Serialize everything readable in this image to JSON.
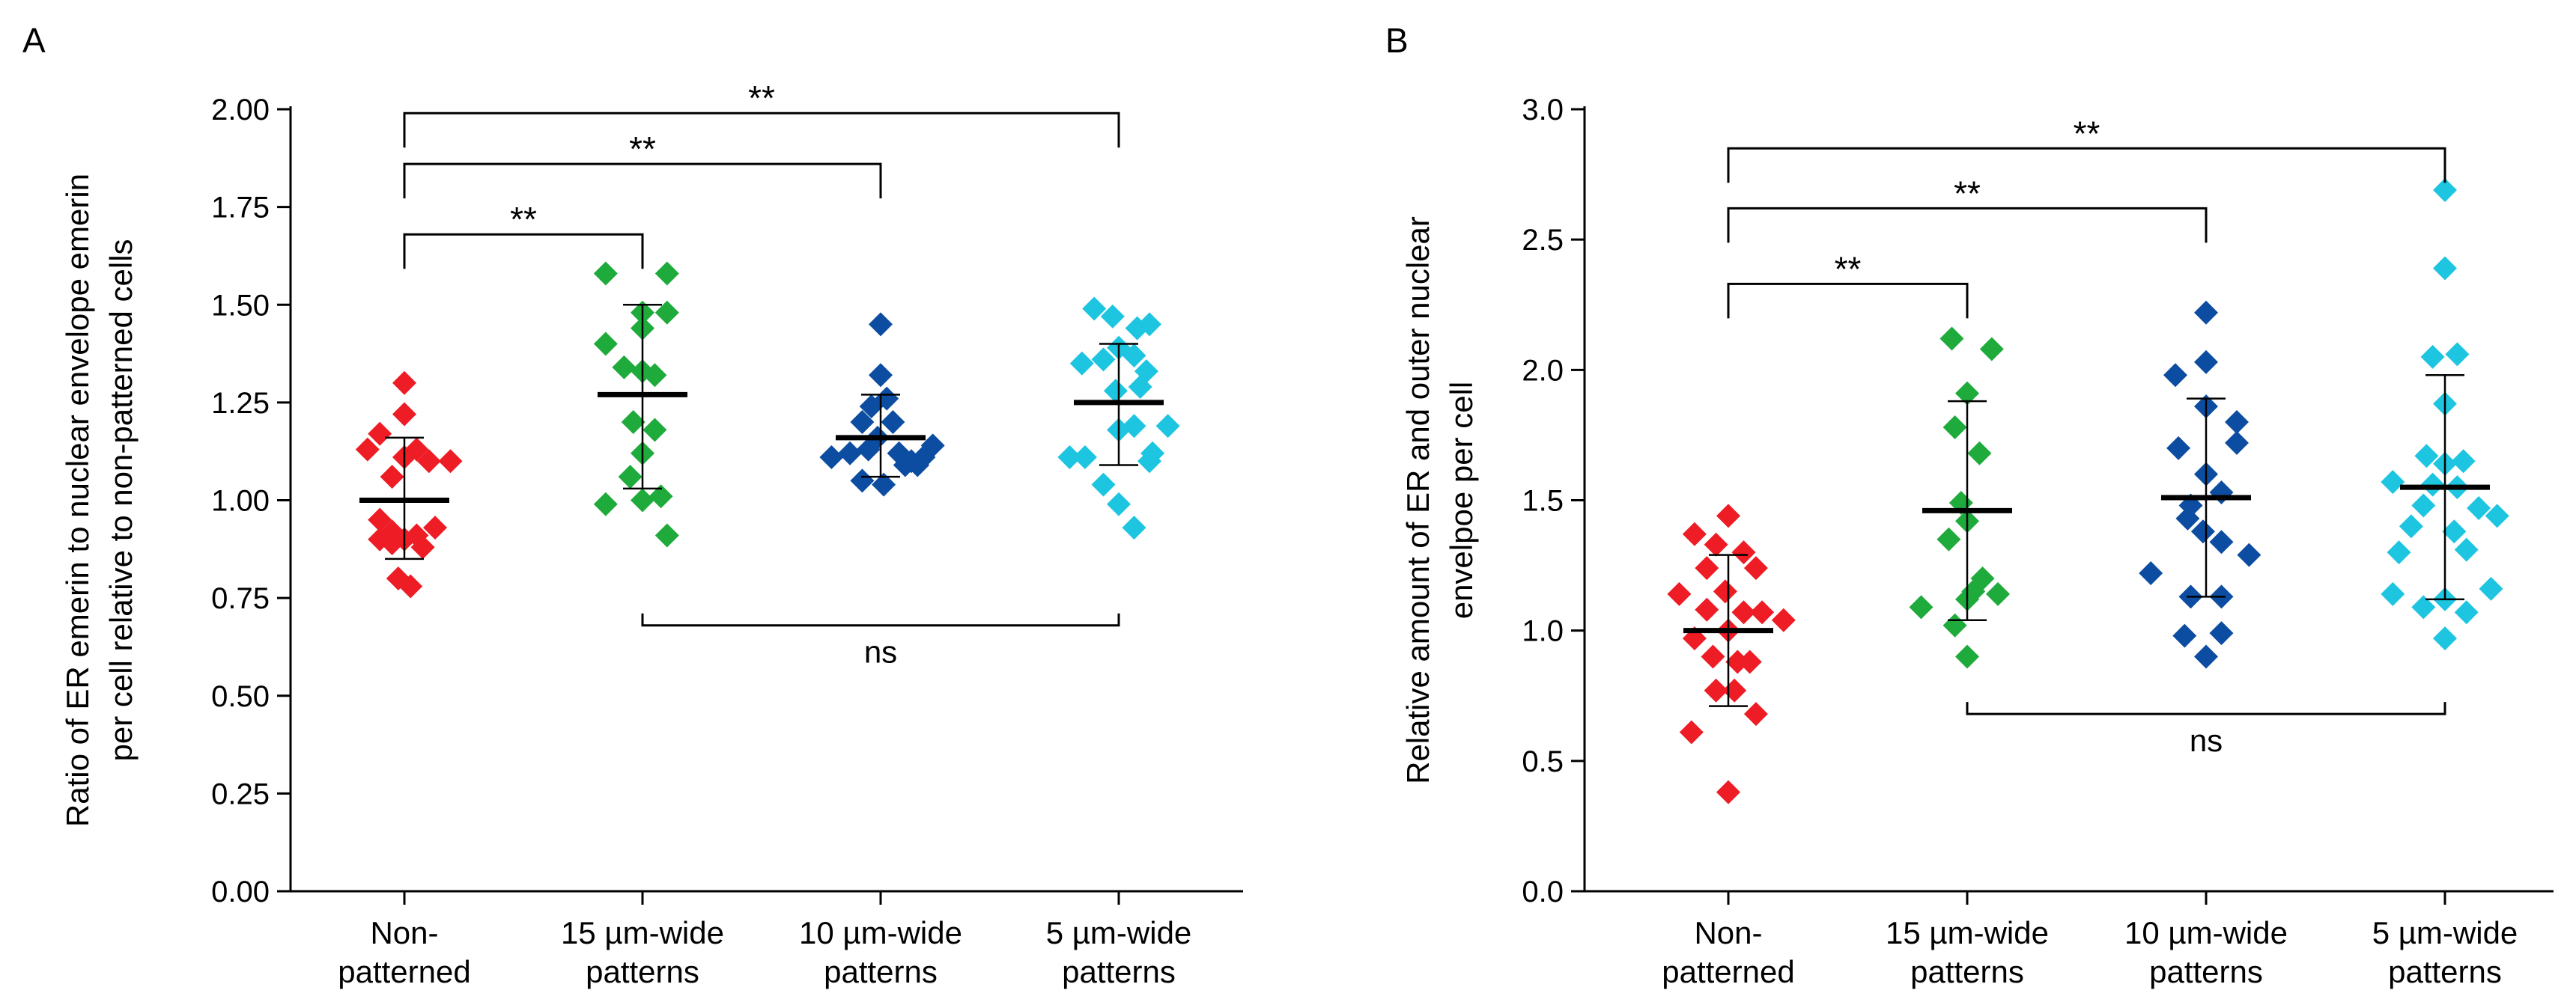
{
  "colors": {
    "non_patterned": "#ee1c25",
    "w15": "#1faa3c",
    "w10": "#0d4da1",
    "w5": "#1ec5e0",
    "line": "#000000"
  },
  "chart_data": [
    {
      "type": "scatter",
      "panel_label": "A",
      "ylabel_lines": [
        "Ratio of ER emerin to nuclear envelope emerin",
        "per cell relative to non-patterned cells"
      ],
      "categories": [
        [
          "Non-",
          "patterned"
        ],
        [
          "15 µm-wide",
          "patterns"
        ],
        [
          "10 µm-wide",
          "patterns"
        ],
        [
          "5 µm-wide",
          "patterns"
        ]
      ],
      "ylim": [
        0,
        2.0
      ],
      "yticks": [
        "0.00",
        "0.25",
        "0.50",
        "0.75",
        "1.00",
        "1.25",
        "1.50",
        "1.75",
        "2.00"
      ],
      "ytick_values": [
        0,
        0.25,
        0.5,
        0.75,
        1.0,
        1.25,
        1.5,
        1.75,
        2.0
      ],
      "series": [
        {
          "name": "Non-patterned",
          "color_key": "non_patterned",
          "mean": 1.0,
          "sd": [
            0.85,
            1.16
          ],
          "points": [
            [
              -0.6,
              1.13
            ],
            [
              -0.4,
              1.17
            ],
            [
              0.0,
              1.3
            ],
            [
              0.0,
              1.22
            ],
            [
              0.0,
              1.11
            ],
            [
              0.2,
              1.13
            ],
            [
              0.4,
              1.1
            ],
            [
              0.75,
              1.1
            ],
            [
              -0.2,
              1.06
            ],
            [
              -0.4,
              0.95
            ],
            [
              -0.2,
              0.92
            ],
            [
              0.0,
              0.9
            ],
            [
              -0.4,
              0.9
            ],
            [
              -0.2,
              0.89
            ],
            [
              0.2,
              0.91
            ],
            [
              0.5,
              0.93
            ],
            [
              0.3,
              0.88
            ],
            [
              -0.1,
              0.8
            ],
            [
              0.1,
              0.78
            ]
          ]
        },
        {
          "name": "15 µm-wide patterns",
          "color_key": "w15",
          "mean": 1.27,
          "sd": [
            1.03,
            1.5
          ],
          "points": [
            [
              -0.6,
              1.58
            ],
            [
              0.4,
              1.58
            ],
            [
              0.0,
              1.48
            ],
            [
              0.4,
              1.48
            ],
            [
              -0.6,
              1.4
            ],
            [
              -0.3,
              1.34
            ],
            [
              0.2,
              1.32
            ],
            [
              0.0,
              1.44
            ],
            [
              0.0,
              1.33
            ],
            [
              -0.15,
              1.2
            ],
            [
              0.2,
              1.18
            ],
            [
              0.0,
              1.12
            ],
            [
              -0.2,
              1.06
            ],
            [
              -0.6,
              0.99
            ],
            [
              0.0,
              1.0
            ],
            [
              0.3,
              1.01
            ],
            [
              0.4,
              0.91
            ]
          ]
        },
        {
          "name": "10 µm-wide patterns",
          "color_key": "w10",
          "mean": 1.16,
          "sd": [
            1.06,
            1.27
          ],
          "points": [
            [
              0.0,
              1.45
            ],
            [
              0.0,
              1.32
            ],
            [
              -0.15,
              1.24
            ],
            [
              0.1,
              1.26
            ],
            [
              -0.3,
              1.2
            ],
            [
              0.2,
              1.2
            ],
            [
              -0.8,
              1.11
            ],
            [
              -0.5,
              1.12
            ],
            [
              -0.2,
              1.13
            ],
            [
              -0.05,
              1.16
            ],
            [
              0.3,
              1.12
            ],
            [
              0.5,
              1.1
            ],
            [
              0.7,
              1.11
            ],
            [
              0.85,
              1.14
            ],
            [
              -0.3,
              1.05
            ],
            [
              0.05,
              1.04
            ],
            [
              0.4,
              1.09
            ],
            [
              0.6,
              1.09
            ]
          ]
        },
        {
          "name": "5 µm-wide patterns",
          "color_key": "w5",
          "mean": 1.25,
          "sd": [
            1.09,
            1.4
          ],
          "points": [
            [
              -0.4,
              1.49
            ],
            [
              -0.1,
              1.47
            ],
            [
              0.3,
              1.44
            ],
            [
              0.5,
              1.45
            ],
            [
              -0.6,
              1.35
            ],
            [
              -0.25,
              1.36
            ],
            [
              0.0,
              1.39
            ],
            [
              0.25,
              1.37
            ],
            [
              0.45,
              1.33
            ],
            [
              -0.05,
              1.28
            ],
            [
              0.35,
              1.29
            ],
            [
              0.8,
              1.19
            ],
            [
              -0.8,
              1.11
            ],
            [
              -0.55,
              1.11
            ],
            [
              0.0,
              1.18
            ],
            [
              0.25,
              1.19
            ],
            [
              0.55,
              1.12
            ],
            [
              -0.25,
              1.04
            ],
            [
              0.0,
              0.99
            ],
            [
              0.25,
              0.93
            ],
            [
              0.5,
              1.1
            ]
          ]
        }
      ],
      "brackets": [
        {
          "from": 0,
          "to": 1,
          "y": 1.68,
          "label": "**"
        },
        {
          "from": 0,
          "to": 2,
          "y": 1.86,
          "label": "**"
        },
        {
          "from": 0,
          "to": 3,
          "y": 1.99,
          "label": "**"
        }
      ],
      "ns_bracket": {
        "from": 1,
        "to": 3,
        "y": 0.68,
        "label": "ns"
      }
    },
    {
      "type": "scatter",
      "panel_label": "B",
      "ylabel_lines": [
        "Relative amount of ER and outer nuclear",
        "envelpoe per cell"
      ],
      "categories": [
        [
          "Non-",
          "patterned"
        ],
        [
          "15 µm-wide",
          "patterns"
        ],
        [
          "10 µm-wide",
          "patterns"
        ],
        [
          "5 µm-wide",
          "patterns"
        ]
      ],
      "ylim": [
        0,
        3.0
      ],
      "yticks": [
        "0.0",
        "0.5",
        "1.0",
        "1.5",
        "2.0",
        "2.5",
        "3.0"
      ],
      "ytick_values": [
        0,
        0.5,
        1.0,
        1.5,
        2.0,
        2.5,
        3.0
      ],
      "series": [
        {
          "name": "Non-patterned",
          "color_key": "non_patterned",
          "mean": 1.0,
          "sd": [
            0.71,
            1.29
          ],
          "points": [
            [
              -0.55,
              1.37
            ],
            [
              0.0,
              1.44
            ],
            [
              -0.2,
              1.33
            ],
            [
              0.25,
              1.3
            ],
            [
              -0.35,
              1.24
            ],
            [
              0.45,
              1.24
            ],
            [
              -0.8,
              1.14
            ],
            [
              -0.35,
              1.08
            ],
            [
              -0.05,
              1.15
            ],
            [
              0.25,
              1.07
            ],
            [
              0.55,
              1.07
            ],
            [
              0.9,
              1.04
            ],
            [
              -0.55,
              0.97
            ],
            [
              0.0,
              1.0
            ],
            [
              -0.25,
              0.9
            ],
            [
              0.15,
              0.88
            ],
            [
              0.35,
              0.88
            ],
            [
              -0.2,
              0.77
            ],
            [
              0.1,
              0.77
            ],
            [
              0.45,
              0.68
            ],
            [
              -0.6,
              0.61
            ],
            [
              0.0,
              0.38
            ]
          ]
        },
        {
          "name": "15 µm-wide patterns",
          "color_key": "w15",
          "mean": 1.46,
          "sd": [
            1.04,
            1.88
          ],
          "points": [
            [
              -0.25,
              2.12
            ],
            [
              0.4,
              2.08
            ],
            [
              0.0,
              1.91
            ],
            [
              -0.2,
              1.78
            ],
            [
              0.2,
              1.68
            ],
            [
              -0.1,
              1.49
            ],
            [
              0.0,
              1.42
            ],
            [
              -0.3,
              1.35
            ],
            [
              0.25,
              1.2
            ],
            [
              0.1,
              1.15
            ],
            [
              -0.2,
              1.02
            ],
            [
              -0.75,
              1.09
            ],
            [
              0.0,
              1.12
            ],
            [
              0.5,
              1.14
            ],
            [
              0.0,
              0.9
            ]
          ]
        },
        {
          "name": "10 µm-wide patterns",
          "color_key": "w10",
          "mean": 1.51,
          "sd": [
            1.13,
            1.89
          ],
          "points": [
            [
              0.0,
              2.22
            ],
            [
              -0.5,
              1.98
            ],
            [
              0.0,
              2.03
            ],
            [
              0.0,
              1.86
            ],
            [
              0.5,
              1.8
            ],
            [
              -0.45,
              1.7
            ],
            [
              0.5,
              1.72
            ],
            [
              0.0,
              1.6
            ],
            [
              -0.25,
              1.48
            ],
            [
              0.25,
              1.53
            ],
            [
              -0.3,
              1.43
            ],
            [
              0.25,
              1.34
            ],
            [
              -0.05,
              1.38
            ],
            [
              0.7,
              1.29
            ],
            [
              -0.9,
              1.22
            ],
            [
              -0.25,
              1.13
            ],
            [
              0.25,
              1.13
            ],
            [
              -0.35,
              0.98
            ],
            [
              0.25,
              0.99
            ],
            [
              0.0,
              0.9
            ]
          ]
        },
        {
          "name": "5 µm-wide patterns",
          "color_key": "w5",
          "mean": 1.55,
          "sd": [
            1.12,
            1.98
          ],
          "points": [
            [
              0.0,
              2.69
            ],
            [
              0.0,
              2.39
            ],
            [
              -0.2,
              2.05
            ],
            [
              0.2,
              2.06
            ],
            [
              0.0,
              1.87
            ],
            [
              -0.3,
              1.67
            ],
            [
              0.0,
              1.64
            ],
            [
              0.3,
              1.65
            ],
            [
              -0.85,
              1.57
            ],
            [
              -0.2,
              1.56
            ],
            [
              0.2,
              1.55
            ],
            [
              -0.55,
              1.4
            ],
            [
              -0.35,
              1.48
            ],
            [
              0.55,
              1.47
            ],
            [
              0.85,
              1.44
            ],
            [
              -0.75,
              1.3
            ],
            [
              0.15,
              1.38
            ],
            [
              0.35,
              1.31
            ],
            [
              -0.85,
              1.14
            ],
            [
              -0.35,
              1.09
            ],
            [
              0.0,
              1.12
            ],
            [
              0.35,
              1.07
            ],
            [
              0.75,
              1.16
            ],
            [
              0.0,
              0.97
            ]
          ]
        }
      ],
      "brackets": [
        {
          "from": 0,
          "to": 1,
          "y": 2.33,
          "label": "**"
        },
        {
          "from": 0,
          "to": 2,
          "y": 2.62,
          "label": "**"
        },
        {
          "from": 0,
          "to": 3,
          "y": 2.85,
          "label": "**"
        }
      ],
      "ns_bracket": {
        "from": 1,
        "to": 3,
        "y": 0.68,
        "label": "ns"
      }
    }
  ]
}
